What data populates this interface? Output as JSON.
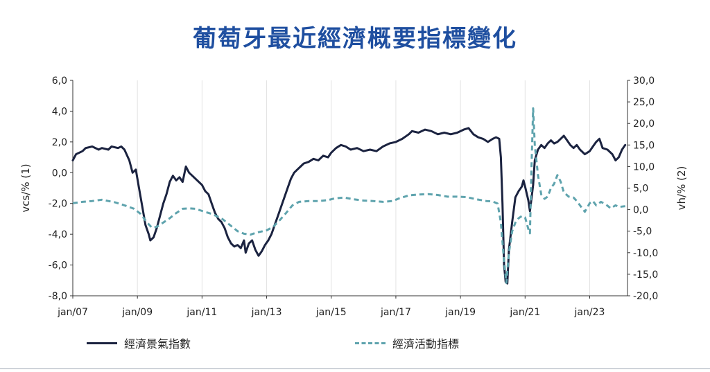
{
  "chart_data": {
    "type": "line",
    "title": "葡萄牙最近經濟概要指標變化",
    "left_axis": {
      "label": "vcs/% (1)",
      "range": [
        -8,
        6
      ],
      "ticks": [
        "6,0",
        "4,0",
        "2,0",
        "0,0",
        "-2,0",
        "-4,0",
        "-6,0",
        "-8,0"
      ],
      "tick_values": [
        6,
        4,
        2,
        0,
        -2,
        -4,
        -6,
        -8
      ]
    },
    "right_axis": {
      "label": "vh/% (2)",
      "range": [
        -20,
        30
      ],
      "ticks": [
        "30,0",
        "25,0",
        "20,0",
        "15,0",
        "10,0",
        "5,0",
        "0,0",
        "-5,0",
        "-10,0",
        "-15,0",
        "-20,0"
      ],
      "tick_values": [
        30,
        25,
        20,
        15,
        10,
        5,
        0,
        -5,
        -10,
        -15,
        -20
      ]
    },
    "x_axis": {
      "range": [
        2007.0,
        2024.17
      ],
      "ticks": [
        "jan/07",
        "jan/09",
        "jan/11",
        "jan/13",
        "jan/15",
        "jan/17",
        "jan/19",
        "jan/21",
        "jan/23"
      ],
      "tick_values": [
        2007,
        2009,
        2011,
        2013,
        2015,
        2017,
        2019,
        2021,
        2023
      ]
    },
    "grid": "vertical",
    "legend_position": "bottom",
    "series": [
      {
        "name": "經濟景氣指數",
        "axis": "left",
        "style": "solid",
        "color": "#1b2340",
        "points": [
          [
            2007.0,
            0.8
          ],
          [
            2007.1,
            1.2
          ],
          [
            2007.3,
            1.4
          ],
          [
            2007.4,
            1.6
          ],
          [
            2007.6,
            1.7
          ],
          [
            2007.8,
            1.5
          ],
          [
            2007.9,
            1.6
          ],
          [
            2008.1,
            1.5
          ],
          [
            2008.2,
            1.7
          ],
          [
            2008.4,
            1.6
          ],
          [
            2008.5,
            1.7
          ],
          [
            2008.6,
            1.5
          ],
          [
            2008.75,
            0.8
          ],
          [
            2008.85,
            0.0
          ],
          [
            2008.95,
            0.2
          ],
          [
            2009.05,
            -1.0
          ],
          [
            2009.15,
            -2.2
          ],
          [
            2009.25,
            -3.4
          ],
          [
            2009.35,
            -4.0
          ],
          [
            2009.4,
            -4.4
          ],
          [
            2009.5,
            -4.2
          ],
          [
            2009.6,
            -3.6
          ],
          [
            2009.7,
            -2.8
          ],
          [
            2009.8,
            -2.0
          ],
          [
            2009.9,
            -1.4
          ],
          [
            2010.0,
            -0.6
          ],
          [
            2010.1,
            -0.2
          ],
          [
            2010.2,
            -0.5
          ],
          [
            2010.3,
            -0.3
          ],
          [
            2010.4,
            -0.6
          ],
          [
            2010.5,
            0.4
          ],
          [
            2010.6,
            0.0
          ],
          [
            2010.7,
            -0.2
          ],
          [
            2010.8,
            -0.4
          ],
          [
            2010.9,
            -0.6
          ],
          [
            2011.0,
            -0.8
          ],
          [
            2011.1,
            -1.2
          ],
          [
            2011.2,
            -1.4
          ],
          [
            2011.3,
            -2.0
          ],
          [
            2011.4,
            -2.6
          ],
          [
            2011.5,
            -3.0
          ],
          [
            2011.6,
            -3.2
          ],
          [
            2011.7,
            -3.6
          ],
          [
            2011.8,
            -4.2
          ],
          [
            2011.9,
            -4.6
          ],
          [
            2012.0,
            -4.8
          ],
          [
            2012.1,
            -4.7
          ],
          [
            2012.2,
            -4.9
          ],
          [
            2012.3,
            -4.4
          ],
          [
            2012.35,
            -5.2
          ],
          [
            2012.45,
            -4.6
          ],
          [
            2012.55,
            -4.4
          ],
          [
            2012.65,
            -5.0
          ],
          [
            2012.75,
            -5.4
          ],
          [
            2012.85,
            -5.1
          ],
          [
            2012.95,
            -4.7
          ],
          [
            2013.05,
            -4.4
          ],
          [
            2013.15,
            -4.0
          ],
          [
            2013.25,
            -3.4
          ],
          [
            2013.35,
            -2.8
          ],
          [
            2013.45,
            -2.2
          ],
          [
            2013.55,
            -1.6
          ],
          [
            2013.65,
            -1.0
          ],
          [
            2013.75,
            -0.4
          ],
          [
            2013.85,
            0.0
          ],
          [
            2013.95,
            0.2
          ],
          [
            2014.05,
            0.4
          ],
          [
            2014.15,
            0.6
          ],
          [
            2014.3,
            0.7
          ],
          [
            2014.45,
            0.9
          ],
          [
            2014.6,
            0.8
          ],
          [
            2014.75,
            1.1
          ],
          [
            2014.9,
            1.0
          ],
          [
            2015.0,
            1.3
          ],
          [
            2015.15,
            1.6
          ],
          [
            2015.3,
            1.8
          ],
          [
            2015.45,
            1.7
          ],
          [
            2015.6,
            1.5
          ],
          [
            2015.8,
            1.6
          ],
          [
            2016.0,
            1.4
          ],
          [
            2016.2,
            1.5
          ],
          [
            2016.4,
            1.4
          ],
          [
            2016.6,
            1.7
          ],
          [
            2016.8,
            1.9
          ],
          [
            2017.0,
            2.0
          ],
          [
            2017.2,
            2.2
          ],
          [
            2017.4,
            2.5
          ],
          [
            2017.5,
            2.7
          ],
          [
            2017.7,
            2.6
          ],
          [
            2017.9,
            2.8
          ],
          [
            2018.1,
            2.7
          ],
          [
            2018.3,
            2.5
          ],
          [
            2018.5,
            2.6
          ],
          [
            2018.7,
            2.5
          ],
          [
            2018.9,
            2.6
          ],
          [
            2019.1,
            2.8
          ],
          [
            2019.25,
            2.9
          ],
          [
            2019.4,
            2.5
          ],
          [
            2019.55,
            2.3
          ],
          [
            2019.7,
            2.2
          ],
          [
            2019.85,
            2.0
          ],
          [
            2020.0,
            2.2
          ],
          [
            2020.1,
            2.3
          ],
          [
            2020.2,
            2.2
          ],
          [
            2020.25,
            1.0
          ],
          [
            2020.3,
            -2.0
          ],
          [
            2020.35,
            -6.0
          ],
          [
            2020.4,
            -7.1
          ],
          [
            2020.45,
            -7.2
          ],
          [
            2020.5,
            -5.0
          ],
          [
            2020.6,
            -3.2
          ],
          [
            2020.7,
            -1.6
          ],
          [
            2020.8,
            -1.2
          ],
          [
            2020.9,
            -0.9
          ],
          [
            2020.95,
            -0.5
          ],
          [
            2021.0,
            -0.9
          ],
          [
            2021.1,
            -1.8
          ],
          [
            2021.15,
            -2.5
          ],
          [
            2021.25,
            -0.8
          ],
          [
            2021.3,
            0.8
          ],
          [
            2021.4,
            1.5
          ],
          [
            2021.5,
            1.8
          ],
          [
            2021.6,
            1.6
          ],
          [
            2021.7,
            1.9
          ],
          [
            2021.8,
            2.1
          ],
          [
            2021.9,
            1.9
          ],
          [
            2022.0,
            2.0
          ],
          [
            2022.1,
            2.2
          ],
          [
            2022.2,
            2.4
          ],
          [
            2022.3,
            2.1
          ],
          [
            2022.4,
            1.8
          ],
          [
            2022.5,
            1.6
          ],
          [
            2022.6,
            1.8
          ],
          [
            2022.7,
            1.5
          ],
          [
            2022.85,
            1.2
          ],
          [
            2023.0,
            1.4
          ],
          [
            2023.1,
            1.7
          ],
          [
            2023.2,
            2.0
          ],
          [
            2023.3,
            2.2
          ],
          [
            2023.4,
            1.6
          ],
          [
            2023.55,
            1.5
          ],
          [
            2023.7,
            1.2
          ],
          [
            2023.8,
            0.8
          ],
          [
            2023.9,
            1.0
          ],
          [
            2024.0,
            1.5
          ],
          [
            2024.1,
            1.8
          ]
        ]
      },
      {
        "name": "經濟活動指標",
        "axis": "right",
        "style": "dashed",
        "color": "#5ea3ad",
        "points": [
          [
            2007.0,
            1.5
          ],
          [
            2007.3,
            1.8
          ],
          [
            2007.6,
            2.0
          ],
          [
            2007.9,
            2.3
          ],
          [
            2008.1,
            2.0
          ],
          [
            2008.3,
            1.7
          ],
          [
            2008.6,
            1.0
          ],
          [
            2008.9,
            0.2
          ],
          [
            2009.1,
            -1.0
          ],
          [
            2009.3,
            -3.0
          ],
          [
            2009.45,
            -4.2
          ],
          [
            2009.6,
            -4.0
          ],
          [
            2009.8,
            -3.0
          ],
          [
            2010.0,
            -2.0
          ],
          [
            2010.2,
            -0.8
          ],
          [
            2010.4,
            0.2
          ],
          [
            2010.6,
            0.3
          ],
          [
            2010.8,
            0.2
          ],
          [
            2011.0,
            -0.3
          ],
          [
            2011.3,
            -1.0
          ],
          [
            2011.6,
            -2.0
          ],
          [
            2011.9,
            -3.8
          ],
          [
            2012.1,
            -5.0
          ],
          [
            2012.3,
            -5.6
          ],
          [
            2012.5,
            -5.8
          ],
          [
            2012.7,
            -5.3
          ],
          [
            2013.0,
            -4.8
          ],
          [
            2013.2,
            -4.0
          ],
          [
            2013.4,
            -2.5
          ],
          [
            2013.6,
            -0.8
          ],
          [
            2013.8,
            1.0
          ],
          [
            2014.0,
            1.8
          ],
          [
            2014.3,
            2.0
          ],
          [
            2014.6,
            2.0
          ],
          [
            2014.9,
            2.2
          ],
          [
            2015.1,
            2.6
          ],
          [
            2015.4,
            2.8
          ],
          [
            2015.7,
            2.4
          ],
          [
            2016.0,
            2.1
          ],
          [
            2016.3,
            2.0
          ],
          [
            2016.6,
            1.8
          ],
          [
            2016.9,
            2.0
          ],
          [
            2017.1,
            2.6
          ],
          [
            2017.4,
            3.3
          ],
          [
            2017.7,
            3.5
          ],
          [
            2018.0,
            3.6
          ],
          [
            2018.3,
            3.4
          ],
          [
            2018.6,
            3.0
          ],
          [
            2018.9,
            3.0
          ],
          [
            2019.2,
            2.9
          ],
          [
            2019.5,
            2.4
          ],
          [
            2019.8,
            2.0
          ],
          [
            2020.0,
            1.9
          ],
          [
            2020.15,
            1.4
          ],
          [
            2020.25,
            -3.0
          ],
          [
            2020.35,
            -12.0
          ],
          [
            2020.42,
            -17.0
          ],
          [
            2020.5,
            -10.0
          ],
          [
            2020.6,
            -5.0
          ],
          [
            2020.7,
            -3.0
          ],
          [
            2020.8,
            -2.0
          ],
          [
            2020.9,
            -1.5
          ],
          [
            2021.0,
            -1.8
          ],
          [
            2021.1,
            -4.5
          ],
          [
            2021.15,
            -5.5
          ],
          [
            2021.2,
            10.0
          ],
          [
            2021.25,
            23.5
          ],
          [
            2021.3,
            15.0
          ],
          [
            2021.4,
            8.0
          ],
          [
            2021.5,
            3.5
          ],
          [
            2021.6,
            2.5
          ],
          [
            2021.7,
            3.0
          ],
          [
            2021.8,
            5.0
          ],
          [
            2021.9,
            6.0
          ],
          [
            2022.0,
            8.0
          ],
          [
            2022.1,
            6.5
          ],
          [
            2022.2,
            4.0
          ],
          [
            2022.35,
            3.0
          ],
          [
            2022.5,
            2.8
          ],
          [
            2022.6,
            2.0
          ],
          [
            2022.75,
            0.5
          ],
          [
            2022.85,
            -0.5
          ],
          [
            2023.0,
            1.5
          ],
          [
            2023.1,
            2.0
          ],
          [
            2023.2,
            1.0
          ],
          [
            2023.35,
            1.8
          ],
          [
            2023.5,
            1.2
          ],
          [
            2023.65,
            0.3
          ],
          [
            2023.8,
            1.0
          ],
          [
            2023.9,
            0.6
          ],
          [
            2024.0,
            0.7
          ],
          [
            2024.1,
            0.8
          ]
        ]
      }
    ]
  }
}
